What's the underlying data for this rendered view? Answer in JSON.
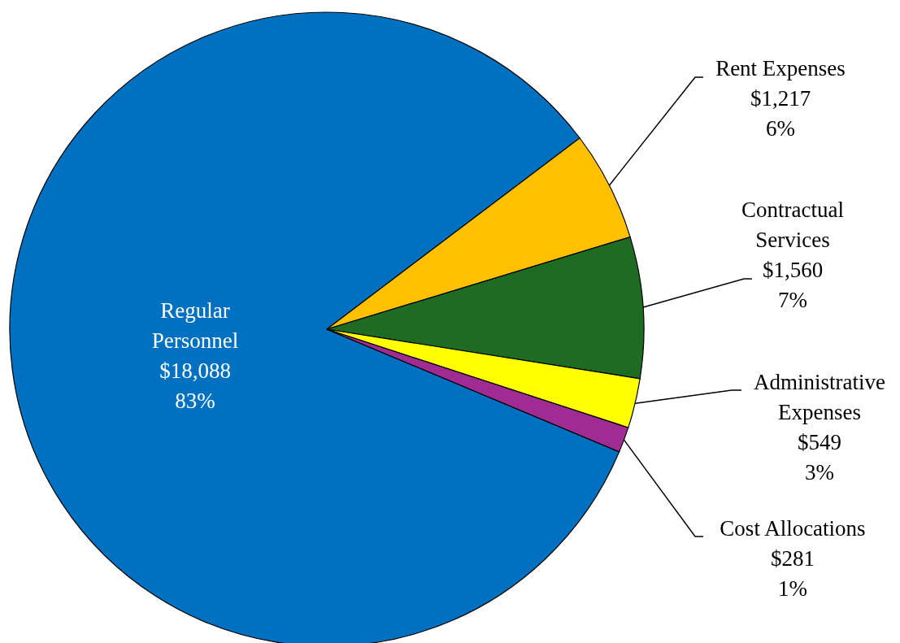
{
  "chart_data": {
    "type": "pie",
    "categories": [
      "Regular Personnel",
      "Rent Expenses",
      "Contractual Services",
      "Administrative Expenses",
      "Cost Allocations"
    ],
    "values": [
      18088,
      1217,
      1560,
      549,
      281
    ],
    "colors": [
      "#0070c0",
      "#ffc000",
      "#1e6b24",
      "#ffff00",
      "#a02b93"
    ],
    "value_labels": [
      "$18,088\n83%",
      "$1,217\n6%",
      "$1,560\n7%",
      "$549\n3%",
      "$281\n1%"
    ]
  }
}
